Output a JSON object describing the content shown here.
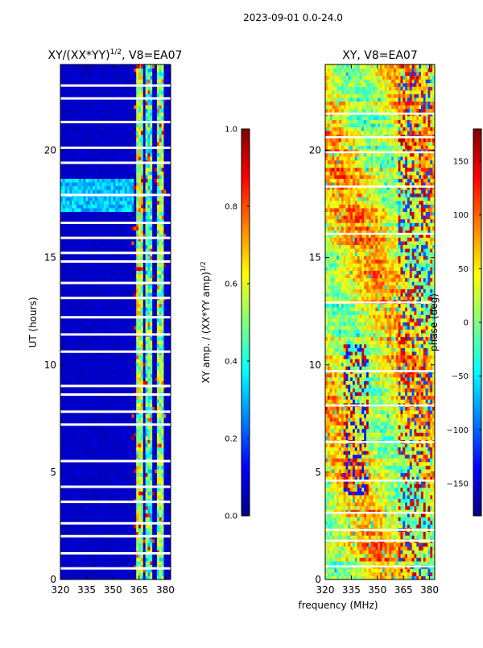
{
  "figure": {
    "suptitle": "2023-09-01 0.0-24.0",
    "common_xlabel": "frequency (MHz)"
  },
  "chart_data": [
    {
      "type": "heatmap",
      "title_main": "XY/(XX*YY)",
      "title_exp": "1/2",
      "title_tail": ", V8=EA07",
      "xlabel": "",
      "ylabel": "UT (hours)",
      "xlim": [
        320,
        383
      ],
      "ylim": [
        0,
        24
      ],
      "xticks": [
        "320",
        "335",
        "350",
        "365",
        "380"
      ],
      "yticks": [
        "0",
        "5",
        "10",
        "15",
        "20"
      ],
      "colormap": "jet",
      "colorbar": {
        "label_main": "XY amp. / (XX*YY amp)",
        "label_exp": "1/2",
        "range": [
          0.0,
          1.0
        ],
        "ticks": [
          "0.0",
          "0.2",
          "0.4",
          "0.6",
          "0.8",
          "1.0"
        ]
      },
      "blank_rows_hours": [
        0.5,
        1.2,
        2.0,
        2.6,
        3.6,
        4.3,
        5.5,
        7.2,
        7.8,
        8.6,
        9.0,
        10.6,
        11.4,
        12.2,
        13.1,
        13.8,
        14.8,
        15.2,
        15.9,
        16.6,
        17.9,
        19.4,
        20.1,
        21.3,
        22.4,
        23.0
      ],
      "background_level": 0.05,
      "bright_bands": [
        {
          "f0": 363,
          "f1": 367,
          "level": 0.55
        },
        {
          "f0": 369,
          "f1": 372,
          "level": 0.45
        },
        {
          "f0": 375,
          "f1": 379,
          "level": 0.5
        }
      ],
      "bright_rows_hours": [
        {
          "t0": 17.2,
          "t1": 18.7,
          "level": 0.4
        }
      ]
    },
    {
      "type": "heatmap",
      "title_main": "XY, V8=EA07",
      "xlabel": "frequency (MHz)",
      "ylabel": "",
      "xlim": [
        320,
        383
      ],
      "ylim": [
        0,
        24
      ],
      "xticks": [
        "320",
        "335",
        "350",
        "365",
        "380"
      ],
      "yticks": [
        "0",
        "5",
        "10",
        "15",
        "20"
      ],
      "colormap": "jet",
      "colorbar": {
        "label": "phase (deg)",
        "range": [
          -180,
          180
        ],
        "ticks": [
          "−150",
          "−100",
          "−50",
          "0",
          "50",
          "100",
          "150"
        ],
        "tick_values": [
          -150,
          -100,
          -50,
          0,
          50,
          100,
          150
        ]
      },
      "blank_rows_hours": [
        0.6,
        1.8,
        2.3,
        3.1,
        4.6,
        6.4,
        8.1,
        9.7,
        12.9,
        16.1,
        18.3,
        19.9,
        20.6,
        21.7
      ]
    }
  ]
}
